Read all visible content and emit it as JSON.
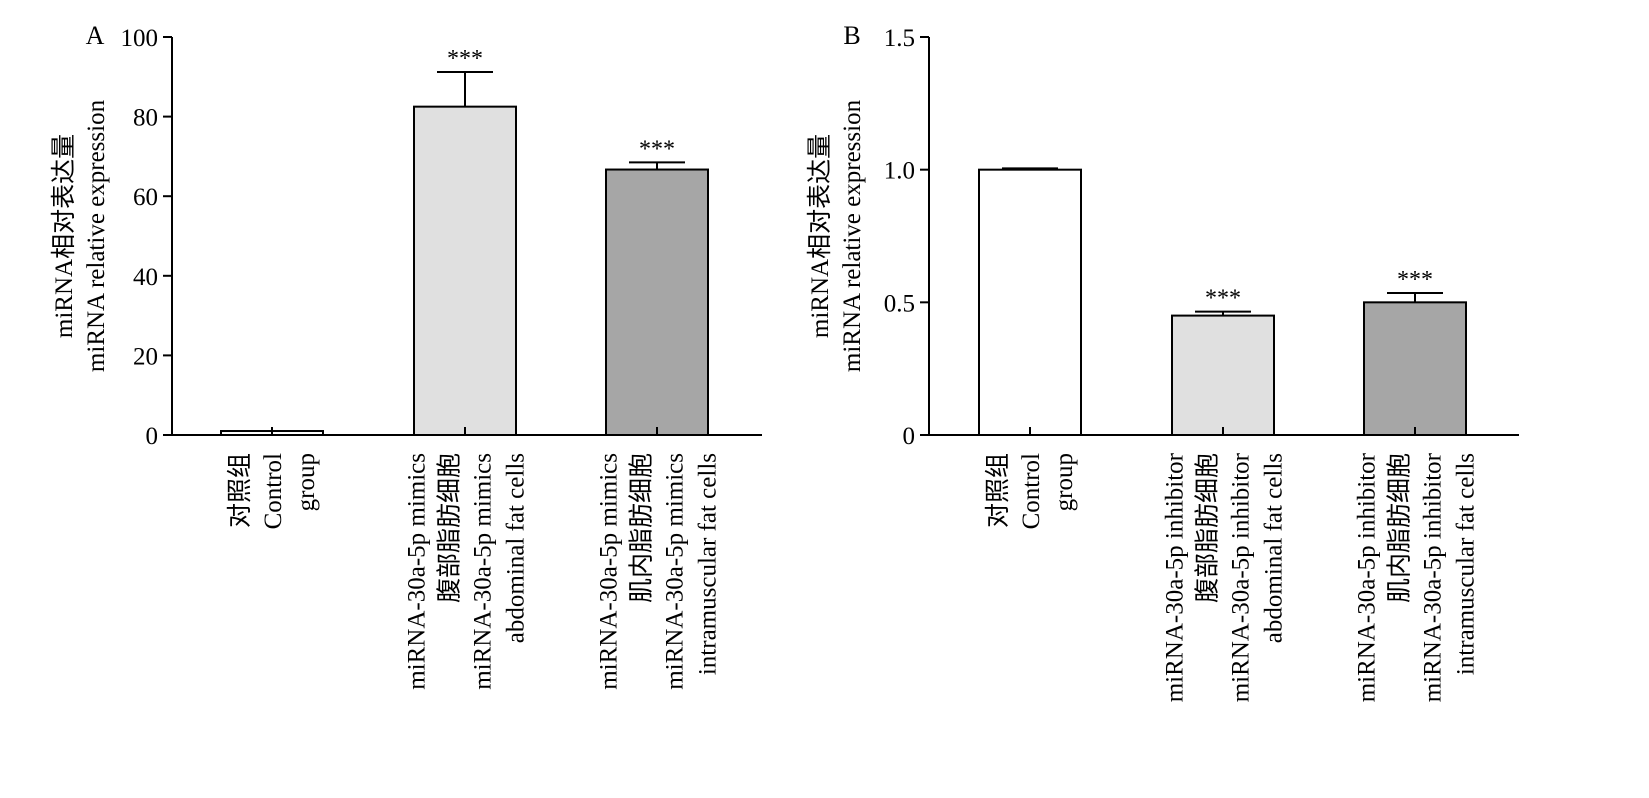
{
  "chart_data": [
    {
      "panel_label": "A",
      "type": "bar",
      "ylabel_lines": [
        "miRNA相对表达量",
        "miRNA relative expression"
      ],
      "ylim": [
        0,
        100
      ],
      "yticks": [
        0,
        20,
        40,
        60,
        80,
        100
      ],
      "ytick_labels": [
        "0",
        "20",
        "40",
        "60",
        "80",
        "100"
      ],
      "categories": [
        {
          "lines": [
            "对照组",
            "Control",
            "group"
          ],
          "value": 1.0,
          "error": 0,
          "color": "#ffffff",
          "annotation": ""
        },
        {
          "lines": [
            "miRNA-30a-5p mimics",
            "腹部脂肪细胞",
            "miRNA-30a-5p mimics",
            "abdominal fat cells"
          ],
          "value": 82.5,
          "error": 8.7,
          "color": "#e0e0e0",
          "annotation": "***"
        },
        {
          "lines": [
            "miRNA-30a-5p mimics",
            "肌内脂肪细胞",
            "miRNA-30a-5p mimics",
            "intramuscular fat cells"
          ],
          "value": 66.7,
          "error": 1.8,
          "color": "#a6a6a6",
          "annotation": "***"
        }
      ]
    },
    {
      "panel_label": "B",
      "type": "bar",
      "ylabel_lines": [
        "miRNA相对表达量",
        "miRNA relative expression"
      ],
      "ylim": [
        0,
        1.5
      ],
      "yticks": [
        0,
        0.5,
        1.0,
        1.5
      ],
      "ytick_labels": [
        "0",
        "0.5",
        "1.0",
        "1.5"
      ],
      "categories": [
        {
          "lines": [
            "对照组",
            "Control",
            "group"
          ],
          "value": 1.0,
          "error": 0.005,
          "color": "#ffffff",
          "annotation": ""
        },
        {
          "lines": [
            "miRNA-30a-5p inhibitor",
            "腹部脂肪细胞",
            "miRNA-30a-5p inhibitor",
            "abdominal fat cells"
          ],
          "value": 0.45,
          "error": 0.015,
          "color": "#e0e0e0",
          "annotation": "***"
        },
        {
          "lines": [
            "miRNA-30a-5p inhibitor",
            "肌内脂肪细胞",
            "miRNA-30a-5p inhibitor",
            "intramuscular fat cells"
          ],
          "value": 0.5,
          "error": 0.035,
          "color": "#a6a6a6",
          "annotation": "***"
        }
      ]
    }
  ]
}
